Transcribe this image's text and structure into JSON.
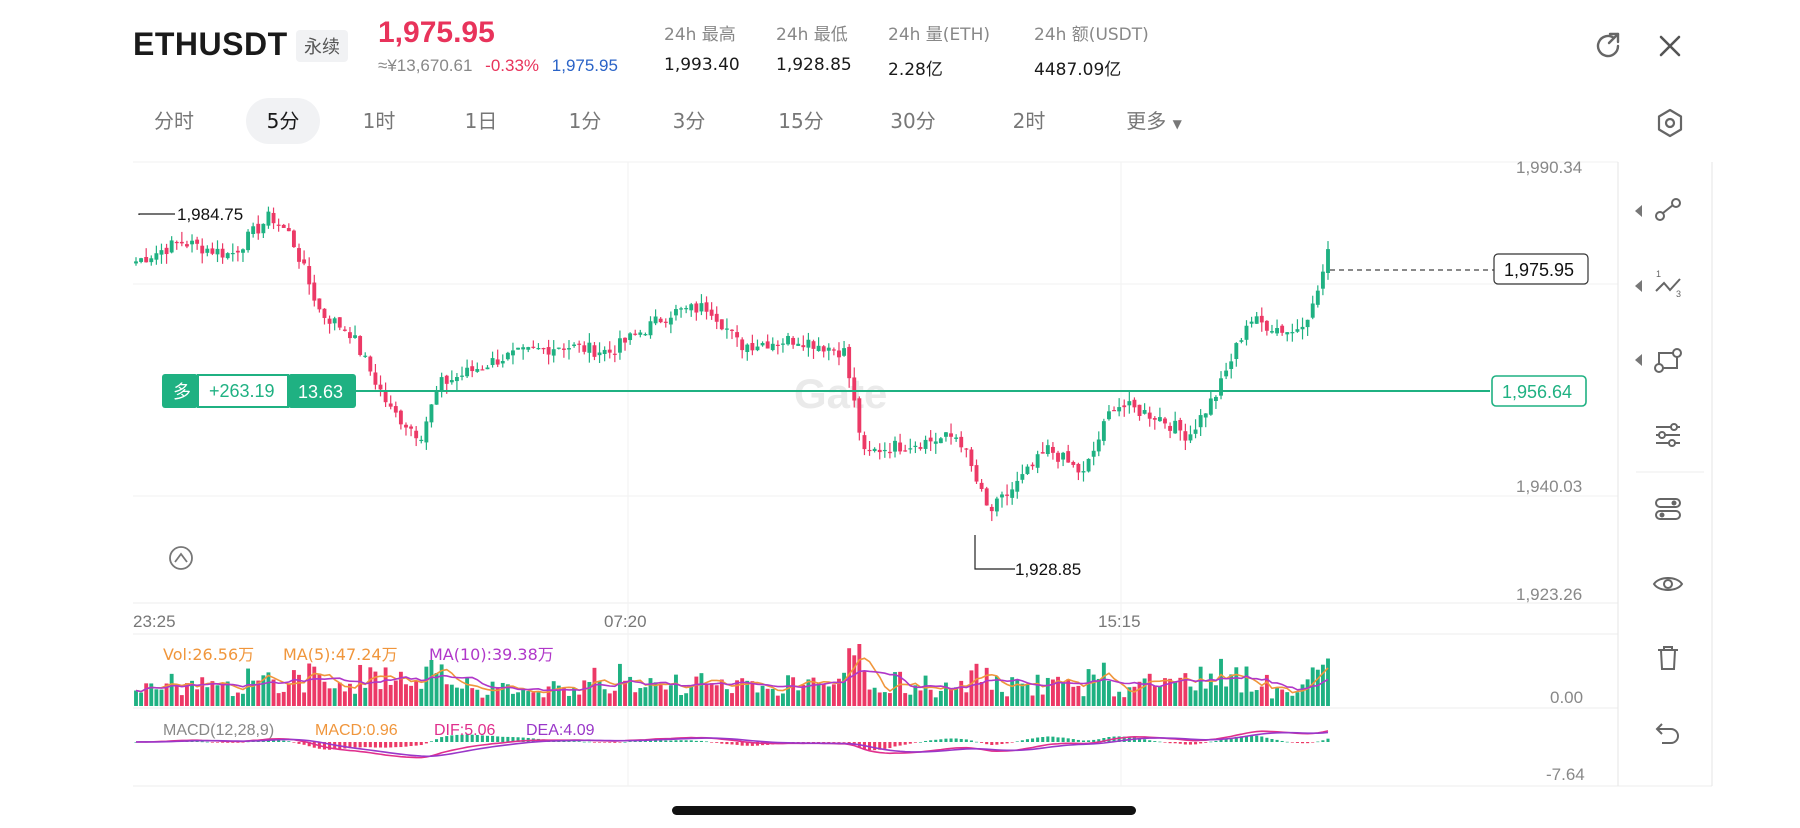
{
  "header": {
    "symbol": "ETHUSDT",
    "contract_badge": "永续",
    "last_price": "1,975.95",
    "cny_price": "≈¥13,670.61",
    "change_pct": "-0.33%",
    "mark_price": "1,975.95",
    "stats": [
      {
        "label": "24h 最高",
        "value": "1,993.40"
      },
      {
        "label": "24h 最低",
        "value": "1,928.85"
      },
      {
        "label": "24h 量(ETH)",
        "value": "2.28亿"
      },
      {
        "label": "24h 额(USDT)",
        "value": "4487.09亿"
      }
    ],
    "icons": [
      "share-icon",
      "close-icon"
    ]
  },
  "tabs": {
    "items": [
      "分时",
      "5分",
      "1时",
      "1日",
      "1分",
      "3分",
      "15分",
      "30分",
      "2时",
      "更多"
    ],
    "active": "5分",
    "settings_icon": "hexagon-settings-icon"
  },
  "colors": {
    "up": "#1fb182",
    "down": "#ec3966",
    "ma5": "#f0963c",
    "ma10": "#b037c9",
    "dif": "#e02f8d",
    "dea": "#9a37c9",
    "position_line": "#1fb182"
  },
  "position": {
    "side": "多",
    "pnl": "+263.19",
    "pnl_pct": "13.63",
    "entry_price": "1,956.64"
  },
  "watermark": "Gate",
  "chart_data": {
    "type": "candlestick",
    "price_axis_ticks": [
      "1,990.34",
      "1,940.03",
      "1,923.26"
    ],
    "current_price_label": "1,975.95",
    "time_axis_ticks": [
      "23:25",
      "07:20",
      "15:15"
    ],
    "high_marker": "1,984.75",
    "low_marker": "1,928.85",
    "price_range": [
      1923.26,
      1990.34
    ],
    "close_path": [
      {
        "t": "23:25",
        "p": 1975
      },
      {
        "t": "00:10",
        "p": 1978
      },
      {
        "t": "01:00",
        "p": 1976
      },
      {
        "t": "01:40",
        "p": 1982
      },
      {
        "t": "02:00",
        "p": 1979
      },
      {
        "t": "02:30",
        "p": 1967
      },
      {
        "t": "03:00",
        "p": 1964
      },
      {
        "t": "03:40",
        "p": 1952
      },
      {
        "t": "04:10",
        "p": 1948
      },
      {
        "t": "04:30",
        "p": 1956
      },
      {
        "t": "05:30",
        "p": 1960
      },
      {
        "t": "06:30",
        "p": 1962
      },
      {
        "t": "07:20",
        "p": 1961
      },
      {
        "t": "08:20",
        "p": 1967
      },
      {
        "t": "09:00",
        "p": 1968
      },
      {
        "t": "09:30",
        "p": 1962
      },
      {
        "t": "10:30",
        "p": 1963
      },
      {
        "t": "11:15",
        "p": 1961
      },
      {
        "t": "11:35",
        "p": 1945
      },
      {
        "t": "11:50",
        "p": 1946
      },
      {
        "t": "12:30",
        "p": 1947
      },
      {
        "t": "13:10",
        "p": 1948
      },
      {
        "t": "13:40",
        "p": 1936
      },
      {
        "t": "14:05",
        "p": 1940
      },
      {
        "t": "14:40",
        "p": 1946
      },
      {
        "t": "15:15",
        "p": 1942
      },
      {
        "t": "15:45",
        "p": 1953
      },
      {
        "t": "16:30",
        "p": 1951
      },
      {
        "t": "17:00",
        "p": 1948
      },
      {
        "t": "17:30",
        "p": 1955
      },
      {
        "t": "18:00",
        "p": 1966
      },
      {
        "t": "18:45",
        "p": 1964
      },
      {
        "t": "19:05",
        "p": 1968
      },
      {
        "t": "19:20",
        "p": 1976
      }
    ],
    "volume_panel": {
      "vol_label": "Vol:26.56万",
      "ma5_label": "MA(5):47.24万",
      "ma10_label": "MA(10):39.38万",
      "axis_tick": "0.00"
    },
    "macd_panel": {
      "macd_params_label": "MACD(12,28,9)",
      "macd_label": "MACD:0.96",
      "dif_label": "DIF:5.06",
      "dea_label": "DEA:4.09",
      "axis_tick": "-7.64"
    }
  },
  "side_toolbar": [
    "trend-line-icon",
    "fib-line-icon",
    "rectangle-draw-icon",
    "indicator-settings-icon",
    "layout-settings-icon",
    "visibility-icon",
    "delete-icon",
    "undo-icon"
  ]
}
